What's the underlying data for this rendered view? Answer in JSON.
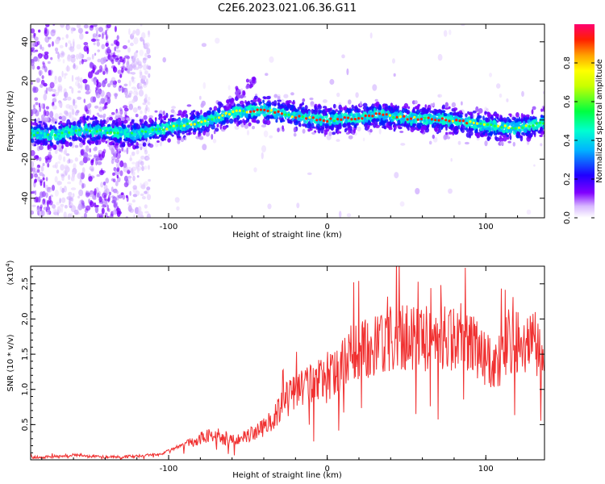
{
  "figure": {
    "title": "C2E6.2023.021.06.36.G11"
  },
  "chart_data": [
    {
      "type": "heatmap",
      "xlabel": "Height of straight line (km)",
      "ylabel": "Frequency (Hz)",
      "xlim": [
        -187,
        137
      ],
      "ylim": [
        -50,
        49
      ],
      "xticks": [
        -100,
        0,
        100
      ],
      "yticks": [
        -40,
        -20,
        0,
        20,
        40
      ],
      "colorbar": {
        "label": "Normalized spectral amplitude",
        "range": [
          0,
          1
        ],
        "ticks": [
          "0.0",
          "0.2",
          "0.4",
          "0.6",
          "0.8"
        ],
        "colormap": [
          "#ffffff",
          "#7a00ff",
          "#2200ff",
          "#00c8ff",
          "#00ff60",
          "#ffff00",
          "#ff8000",
          "#ff0000",
          "#ff0060"
        ]
      },
      "ridge": [
        {
          "x": -187,
          "y": -7
        },
        {
          "x": -170,
          "y": -8
        },
        {
          "x": -160,
          "y": -5
        },
        {
          "x": -140,
          "y": -6
        },
        {
          "x": -120,
          "y": -7
        },
        {
          "x": -100,
          "y": -4
        },
        {
          "x": -80,
          "y": -1
        },
        {
          "x": -60,
          "y": 4
        },
        {
          "x": -40,
          "y": 5
        },
        {
          "x": -20,
          "y": 2
        },
        {
          "x": 0,
          "y": 0
        },
        {
          "x": 20,
          "y": 1
        },
        {
          "x": 30,
          "y": 3
        },
        {
          "x": 50,
          "y": 1
        },
        {
          "x": 80,
          "y": 0
        },
        {
          "x": 100,
          "y": -3
        },
        {
          "x": 120,
          "y": -4
        },
        {
          "x": 137,
          "y": -1
        }
      ],
      "streak": [
        {
          "x": -62,
          "y": 8
        },
        {
          "x": -55,
          "y": 14
        },
        {
          "x": -48,
          "y": 19
        }
      ]
    },
    {
      "type": "line",
      "xlabel": "Height of straight line (km)",
      "ylabel": "SNR (10 * v/v)",
      "yscale_label": "(x10",
      "yscale_exp": "4",
      "xlim": [
        -187,
        137
      ],
      "ylim": [
        0,
        2.75
      ],
      "xticks": [
        -100,
        0,
        100
      ],
      "yticks": [
        "0.5",
        "1.0",
        "1.5",
        "2.0",
        "2.5"
      ],
      "color": "#f03030",
      "series": [
        {
          "x": [
            -187,
            -170,
            -160,
            -140,
            -120,
            -105,
            -95,
            -85,
            -75,
            -65,
            -55,
            -45,
            -35,
            -25,
            -15,
            -5,
            5,
            15,
            25,
            35,
            45,
            55,
            65,
            75,
            85,
            95,
            105,
            115,
            125,
            137
          ],
          "y": [
            0.03,
            0.05,
            0.07,
            0.04,
            0.05,
            0.08,
            0.18,
            0.25,
            0.35,
            0.28,
            0.3,
            0.4,
            0.55,
            0.9,
            1.05,
            1.15,
            1.2,
            1.5,
            1.6,
            1.7,
            1.72,
            1.75,
            1.72,
            1.75,
            1.78,
            1.55,
            1.3,
            1.6,
            1.7,
            1.65
          ]
        }
      ]
    }
  ]
}
